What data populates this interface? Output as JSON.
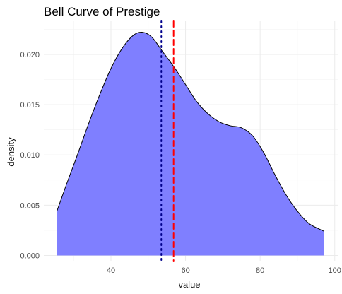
{
  "chart_data": {
    "type": "area",
    "title": "Bell Curve of Prestige",
    "xlabel": "value",
    "ylabel": "density",
    "xlim": [
      22,
      101
    ],
    "ylim": [
      -0.0006,
      0.0233
    ],
    "x_ticks": [
      40,
      60,
      80,
      100
    ],
    "y_ticks": [
      0.0,
      0.005,
      0.01,
      0.015,
      0.02
    ],
    "y_tick_labels": [
      "0.000",
      "0.005",
      "0.010",
      "0.015",
      "0.020"
    ],
    "x_minor_ticks": [
      30,
      50,
      70,
      90
    ],
    "y_minor_ticks": [
      0.0025,
      0.0075,
      0.0125,
      0.0175,
      0.0225
    ],
    "grid": true,
    "fill_color": "#7f7fff",
    "line_color": "#000000",
    "x": [
      25.5,
      28,
      31,
      34,
      37,
      40,
      43,
      46,
      48.5,
      51,
      54,
      57,
      60,
      63,
      66,
      69,
      72,
      75,
      78,
      81,
      84,
      87,
      90,
      93,
      96,
      97.2
    ],
    "y": [
      0.0044,
      0.007,
      0.01,
      0.0131,
      0.016,
      0.0186,
      0.0206,
      0.0219,
      0.0222,
      0.0217,
      0.0202,
      0.0187,
      0.017,
      0.0153,
      0.0141,
      0.0133,
      0.0129,
      0.0127,
      0.0119,
      0.0102,
      0.008,
      0.006,
      0.0044,
      0.0032,
      0.0026,
      0.0024
    ],
    "reference_lines": [
      {
        "x": 53.5,
        "color": "#00008b",
        "style": "dotted"
      },
      {
        "x": 56.8,
        "color": "#ff0000",
        "style": "dashed"
      }
    ]
  }
}
